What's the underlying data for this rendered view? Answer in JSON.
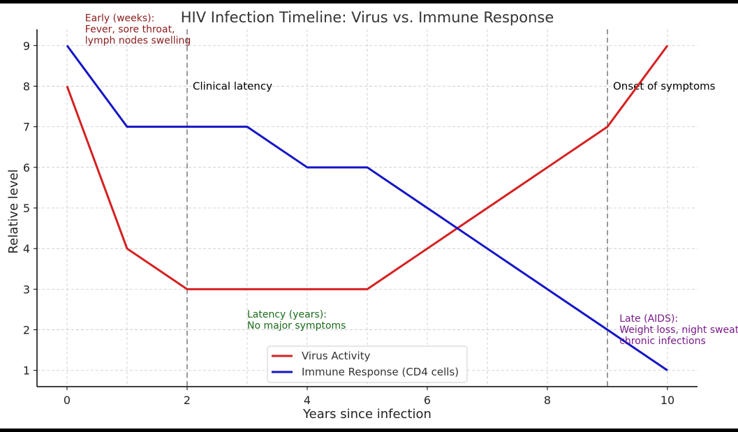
{
  "chart_data": {
    "type": "line",
    "title": "HIV Infection Timeline: Virus vs. Immune Response",
    "xlabel": "Years since infection",
    "ylabel": "Relative level",
    "xlim": [
      -0.5,
      10.5
    ],
    "ylim": [
      0.6,
      9.4
    ],
    "xticks": [
      0,
      2,
      4,
      6,
      8,
      10
    ],
    "yticks": [
      1,
      2,
      3,
      4,
      5,
      6,
      7,
      8,
      9
    ],
    "grid": true,
    "legend_position": "bottom-center",
    "x": [
      0,
      1,
      2,
      3,
      4,
      5,
      6,
      7,
      8,
      9,
      10
    ],
    "series": [
      {
        "name": "Virus Activity",
        "color": "#d62020",
        "values": [
          8,
          4,
          3,
          3,
          3,
          3,
          4,
          5,
          6,
          7,
          9
        ]
      },
      {
        "name": "Immune Response (CD4 cells)",
        "color": "#1414c8",
        "values": [
          9,
          7,
          7,
          7,
          6,
          6,
          5,
          4,
          3,
          2,
          1
        ]
      }
    ],
    "vlines": [
      {
        "x": 2,
        "label": "Clinical latency",
        "label_y": 8
      },
      {
        "x": 9,
        "label": "Onset of symptoms",
        "label_y": 8
      }
    ],
    "annotations": [
      {
        "lines": [
          "Early (weeks):",
          "Fever, sore throat,",
          "lymph nodes swelling"
        ],
        "x": 0.3,
        "y": 9.6,
        "color": "#8b1a1a"
      },
      {
        "lines": [
          "Latency (years):",
          "No major symptoms"
        ],
        "x": 3,
        "y": 2.3,
        "color": "#1a6b1a"
      },
      {
        "lines": [
          "Late (AIDS):",
          "Weight loss, night sweats,",
          "chronic infections"
        ],
        "x": 9.2,
        "y": 2.2,
        "color": "#7a1a8b"
      }
    ]
  }
}
